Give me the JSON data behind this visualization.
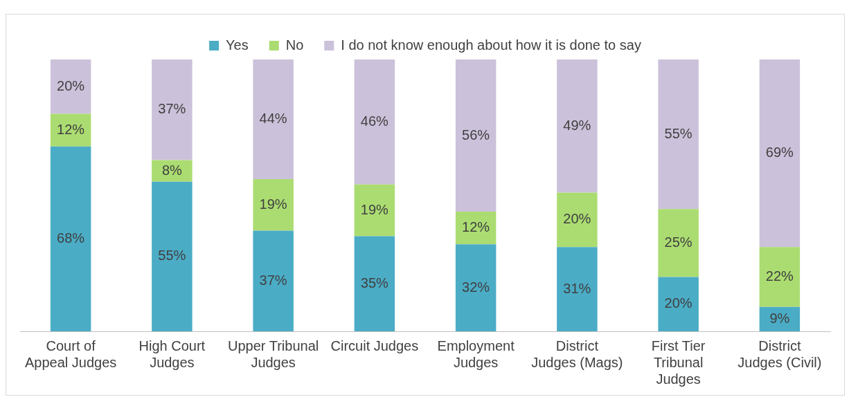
{
  "chart_data": {
    "type": "bar",
    "stacked": true,
    "legend": "top",
    "grid": false,
    "tick_labels": "x",
    "ylim": [
      0,
      100
    ],
    "categories": [
      "Court of Appeal Judges",
      "High Court Judges",
      "Upper Tribunal Judges",
      "Circuit Judges",
      "Employment Judges",
      "District Judges (Mags)",
      "First Tier Tribunal Judges",
      "District Judges (Civil)"
    ],
    "series": [
      {
        "name": "Yes",
        "color": "#4bacc6",
        "values": [
          68,
          55,
          37,
          35,
          32,
          31,
          20,
          9
        ],
        "value_labels": [
          "68%",
          "55%",
          "37%",
          "35%",
          "32%",
          "31%",
          "20%",
          "9%"
        ]
      },
      {
        "name": "No",
        "color": "#abdc71",
        "values": [
          12,
          8,
          19,
          19,
          12,
          20,
          25,
          22
        ],
        "value_labels": [
          "12%",
          "8%",
          "19%",
          "19%",
          "12%",
          "20%",
          "25%",
          "22%"
        ]
      },
      {
        "name": "I do not know enough about how it is done to say",
        "color": "#ccc1da",
        "values": [
          20,
          37,
          44,
          46,
          56,
          49,
          55,
          69
        ],
        "value_labels": [
          "20%",
          "37%",
          "44%",
          "46%",
          "56%",
          "49%",
          "55%",
          "69%"
        ]
      }
    ]
  }
}
